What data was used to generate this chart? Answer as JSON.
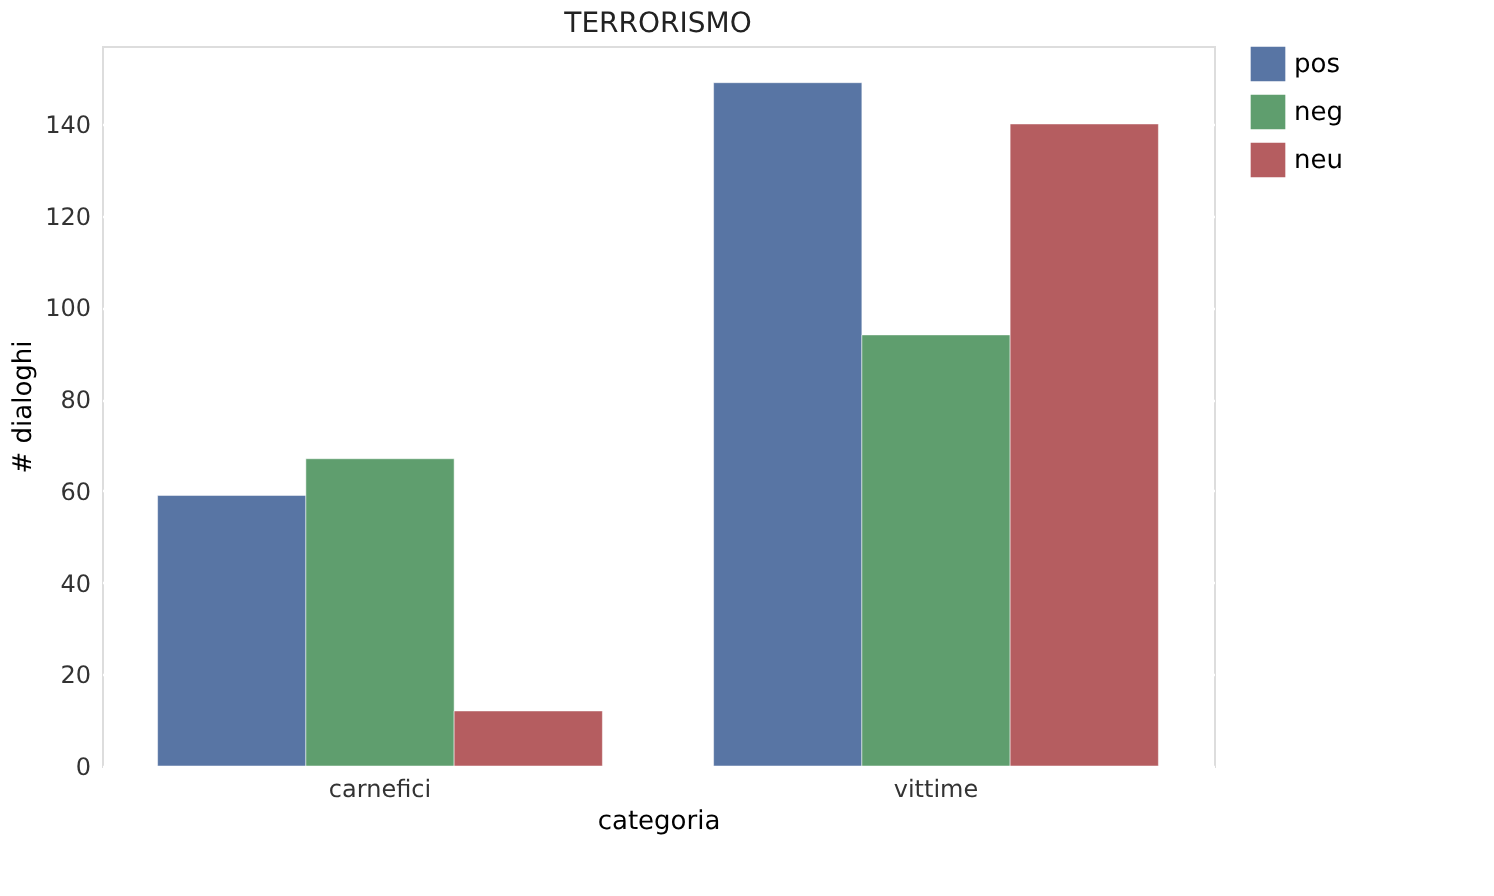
{
  "chart_data": {
    "type": "bar",
    "title": "TERRORISMO",
    "xlabel": "categoria",
    "ylabel": "# dialoghi",
    "categories": [
      "carnefici",
      "vittime"
    ],
    "series": [
      {
        "name": "pos",
        "color": "#5875a4",
        "values": [
          59,
          149
        ]
      },
      {
        "name": "neg",
        "color": "#5f9e6e",
        "values": [
          67,
          94
        ]
      },
      {
        "name": "neu",
        "color": "#b55d60",
        "values": [
          12,
          140
        ]
      }
    ],
    "ylim": [
      0,
      157
    ],
    "yticks": [
      0,
      20,
      40,
      60,
      80,
      100,
      120,
      140
    ],
    "grid": "y",
    "legend": "top right"
  }
}
